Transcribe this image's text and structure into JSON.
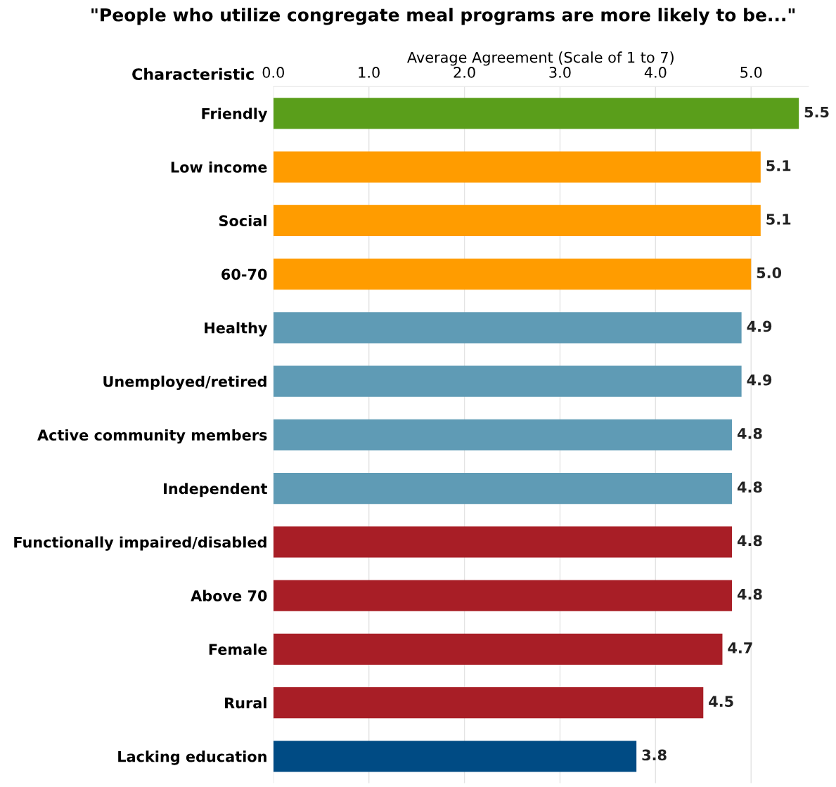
{
  "chart_data": {
    "type": "bar",
    "orientation": "horizontal",
    "title": "\"People who utilize congregate meal programs are more likely to be...\"",
    "xlabel": "Average Agreement (Scale of 1 to 7)",
    "ylabel": "Characteristic",
    "categories": [
      "Friendly",
      "Low income",
      "Social",
      "60-70",
      "Healthy",
      "Unemployed/retired",
      "Active community members",
      "Independent",
      "Functionally impaired/disabled",
      "Above 70",
      "Female",
      "Rural",
      "Lacking education"
    ],
    "values": [
      5.5,
      5.1,
      5.1,
      5.0,
      4.9,
      4.9,
      4.8,
      4.8,
      4.8,
      4.8,
      4.7,
      4.5,
      3.8
    ],
    "value_labels": [
      "5.5",
      "5.1",
      "5.1",
      "5.0",
      "4.9",
      "4.9",
      "4.8",
      "4.8",
      "4.8",
      "4.8",
      "4.7",
      "4.5",
      "3.8"
    ],
    "colors": [
      "#5a9e1b",
      "#ff9c00",
      "#ff9c00",
      "#ff9c00",
      "#5f9bb5",
      "#5f9bb5",
      "#5f9bb5",
      "#5f9bb5",
      "#a81e26",
      "#a81e26",
      "#a81e26",
      "#a81e26",
      "#004b84"
    ],
    "xlim": [
      0,
      5.6
    ],
    "xticks": [
      {
        "value": 0,
        "label": "0.0"
      },
      {
        "value": 1,
        "label": "1.0"
      },
      {
        "value": 2,
        "label": "2.0"
      },
      {
        "value": 3,
        "label": "3.0"
      },
      {
        "value": 4,
        "label": "4.0"
      },
      {
        "value": 5,
        "label": "5.0"
      }
    ],
    "grid": "x",
    "legend": false
  }
}
